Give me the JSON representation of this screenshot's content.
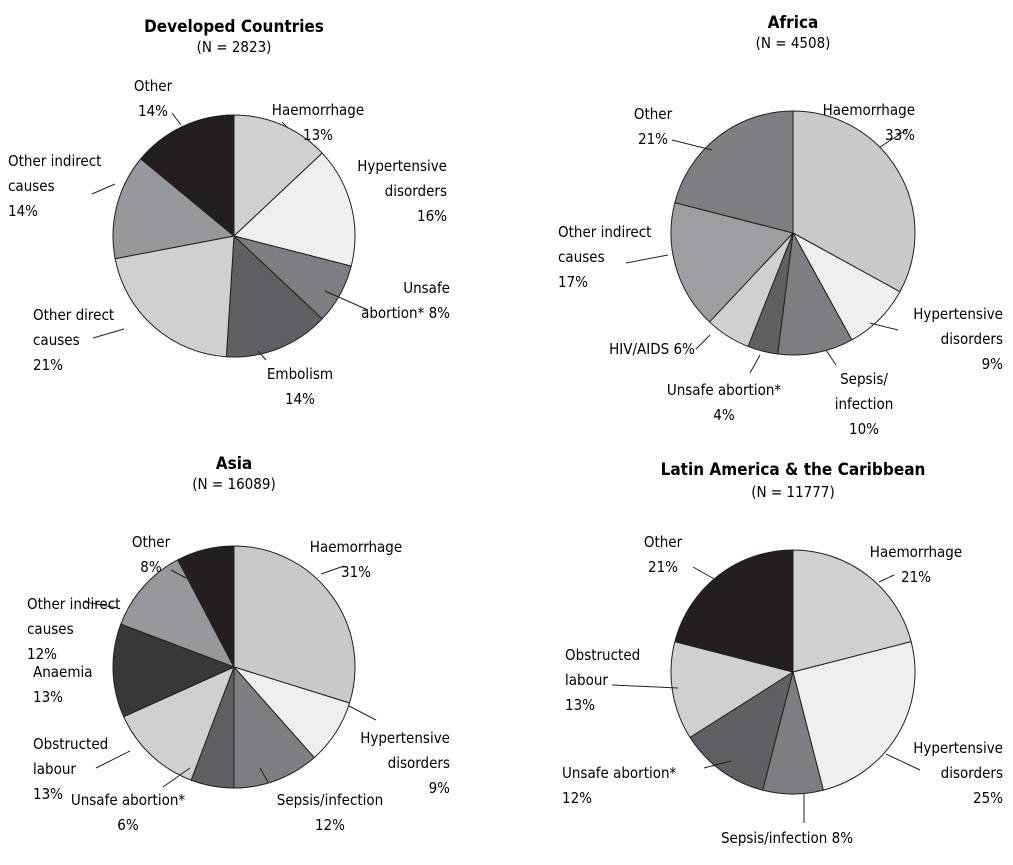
{
  "chart_data": [
    {
      "type": "pie",
      "title": "Developed Countries",
      "subtitle": "(N = 2823)",
      "slices": [
        {
          "label": [
            "Haemorrhage",
            "13%"
          ],
          "value": 13,
          "color": "#d0d0d2"
        },
        {
          "label": [
            "Hypertensive",
            "disorders",
            "16%"
          ],
          "value": 16,
          "color": "#efeff0"
        },
        {
          "label": [
            "Unsafe",
            "abortion* 8%"
          ],
          "value": 8,
          "color": "#7d7e81"
        },
        {
          "label": [
            "Embolism",
            "14%"
          ],
          "value": 14,
          "color": "#5f6063"
        },
        {
          "label": [
            "Other direct",
            "causes",
            "21%"
          ],
          "value": 21,
          "color": "#d0d0d2"
        },
        {
          "label": [
            "Other indirect",
            "causes",
            "14%"
          ],
          "value": 14,
          "color": "#97989b"
        },
        {
          "label": [
            "Other",
            "14%"
          ],
          "value": 14,
          "color": "#231f20"
        }
      ]
    },
    {
      "type": "pie",
      "title": "Africa",
      "subtitle": "(N = 4508)",
      "slices": [
        {
          "label": [
            "Haemorrhage",
            "33%"
          ],
          "value": 33,
          "color": "#c9c9cb"
        },
        {
          "label": [
            "Hypertensive",
            "disorders",
            "9%"
          ],
          "value": 9,
          "color": "#efeff0"
        },
        {
          "label": [
            "Sepsis/",
            "infection",
            "10%"
          ],
          "value": 10,
          "color": "#7d7e81"
        },
        {
          "label": [
            "Unsafe abortion*",
            "4%"
          ],
          "value": 4,
          "color": "#5f6063"
        },
        {
          "label": [
            "HIV/AIDS 6%"
          ],
          "value": 6,
          "color": "#d0d0d2"
        },
        {
          "label": [
            "Other indirect",
            "causes",
            "17%"
          ],
          "value": 17,
          "color": "#9d9ea1"
        },
        {
          "label": [
            "Other",
            "21%"
          ],
          "value": 21,
          "color": "#7d7e81"
        }
      ]
    },
    {
      "type": "pie",
      "title": "Asia",
      "subtitle": "(N = 16089)",
      "slices": [
        {
          "label": [
            "Haemorrhage",
            "31%"
          ],
          "value": 31,
          "color": "#c9c9cb"
        },
        {
          "label": [
            "Hypertensive",
            "disorders",
            "9%"
          ],
          "value": 9,
          "color": "#efeff0"
        },
        {
          "label": [
            "Sepsis/infection",
            "12%"
          ],
          "value": 12,
          "color": "#7d7e81"
        },
        {
          "label": [
            "Unsafe abortion*",
            "6%"
          ],
          "value": 6,
          "color": "#5f6063"
        },
        {
          "label": [
            "Obstructed",
            "labour",
            "13%"
          ],
          "value": 13,
          "color": "#d0d0d2"
        },
        {
          "label": [
            "Anaemia",
            "13%"
          ],
          "value": 13,
          "color": "#39373a"
        },
        {
          "label": [
            "Other indirect",
            "causes",
            "12%"
          ],
          "value": 12,
          "color": "#97989b"
        },
        {
          "label": [
            "Other",
            "8%"
          ],
          "value": 8,
          "color": "#231f20"
        }
      ]
    },
    {
      "type": "pie",
      "title": "Latin America & the Caribbean",
      "subtitle": "(N = 11777)",
      "slices": [
        {
          "label": [
            "Haemorrhage",
            "21%"
          ],
          "value": 21,
          "color": "#d0d0d2"
        },
        {
          "label": [
            "Hypertensive",
            "disorders",
            "25%"
          ],
          "value": 25,
          "color": "#efeff0"
        },
        {
          "label": [
            "Sepsis/infection 8%"
          ],
          "value": 8,
          "color": "#7d7e81"
        },
        {
          "label": [
            "Unsafe abortion*",
            "12%"
          ],
          "value": 12,
          "color": "#5f6063"
        },
        {
          "label": [
            "Obstructed",
            "labour",
            "13%"
          ],
          "value": 13,
          "color": "#d0d0d2"
        },
        {
          "label": [
            "Other",
            "21%"
          ],
          "value": 21,
          "color": "#231f20"
        }
      ]
    }
  ]
}
